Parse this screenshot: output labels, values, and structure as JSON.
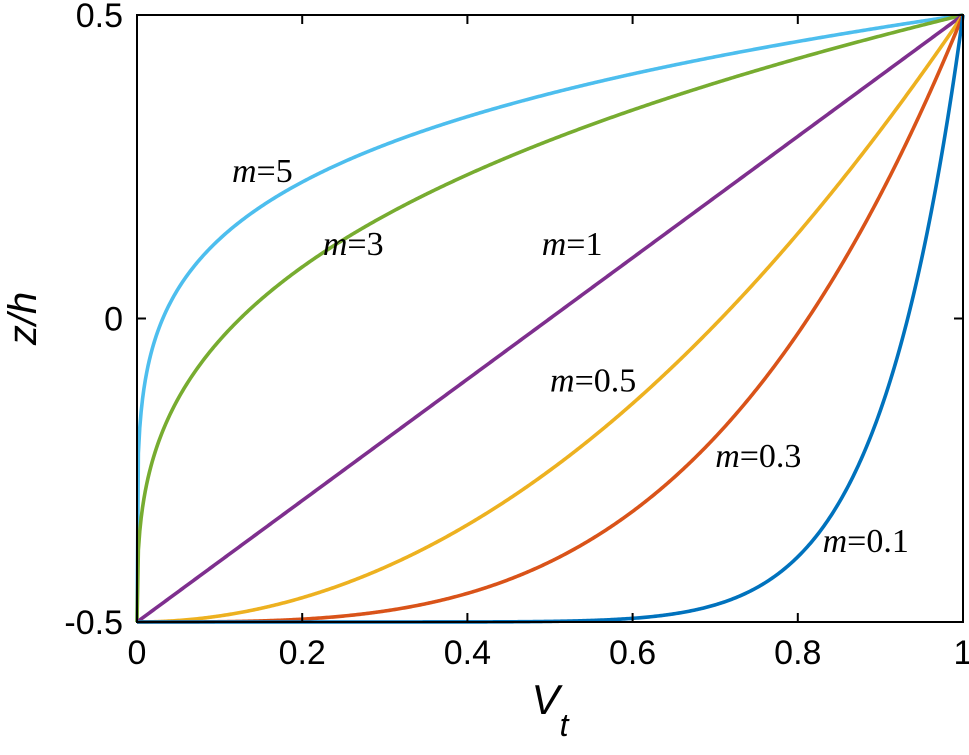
{
  "chart_data": {
    "type": "line",
    "xlabel_base": "V",
    "xlabel_sub": "t",
    "ylabel": "z/h",
    "xlim": [
      0,
      1
    ],
    "ylim": [
      -0.5,
      0.5
    ],
    "xticks": [
      0,
      0.2,
      0.4,
      0.6,
      0.8,
      1
    ],
    "xtick_labels": [
      "0",
      "0.2",
      "0.4",
      "0.6",
      "0.8",
      "1"
    ],
    "yticks": [
      -0.5,
      0,
      0.5
    ],
    "ytick_labels": [
      "-0.5",
      "0",
      "0.5"
    ],
    "grid": false,
    "legend": "none",
    "series": [
      {
        "name": "m=5",
        "prefix": "m",
        "value": "=5",
        "m": 5,
        "color": "#4DBEEE",
        "label_at": [
          0.115,
          0.225
        ]
      },
      {
        "name": "m=3",
        "prefix": "m",
        "value": "=3",
        "m": 3,
        "color": "#77AC30",
        "label_at": [
          0.225,
          0.105
        ]
      },
      {
        "name": "m=1",
        "prefix": "m",
        "value": "=1",
        "m": 1,
        "color": "#7E2F8E",
        "label_at": [
          0.49,
          0.105
        ]
      },
      {
        "name": "m=0.5",
        "prefix": "m",
        "value": "=0.5",
        "m": 0.5,
        "color": "#EDB120",
        "label_at": [
          0.5,
          -0.12
        ]
      },
      {
        "name": "m=0.3",
        "prefix": "m",
        "value": "=0.3",
        "m": 0.3,
        "color": "#D95319",
        "label_at": [
          0.7,
          -0.245
        ]
      },
      {
        "name": "m=0.1",
        "prefix": "m",
        "value": "=0.1",
        "m": 0.1,
        "color": "#0072BD",
        "label_at": [
          0.83,
          -0.385
        ]
      }
    ]
  }
}
